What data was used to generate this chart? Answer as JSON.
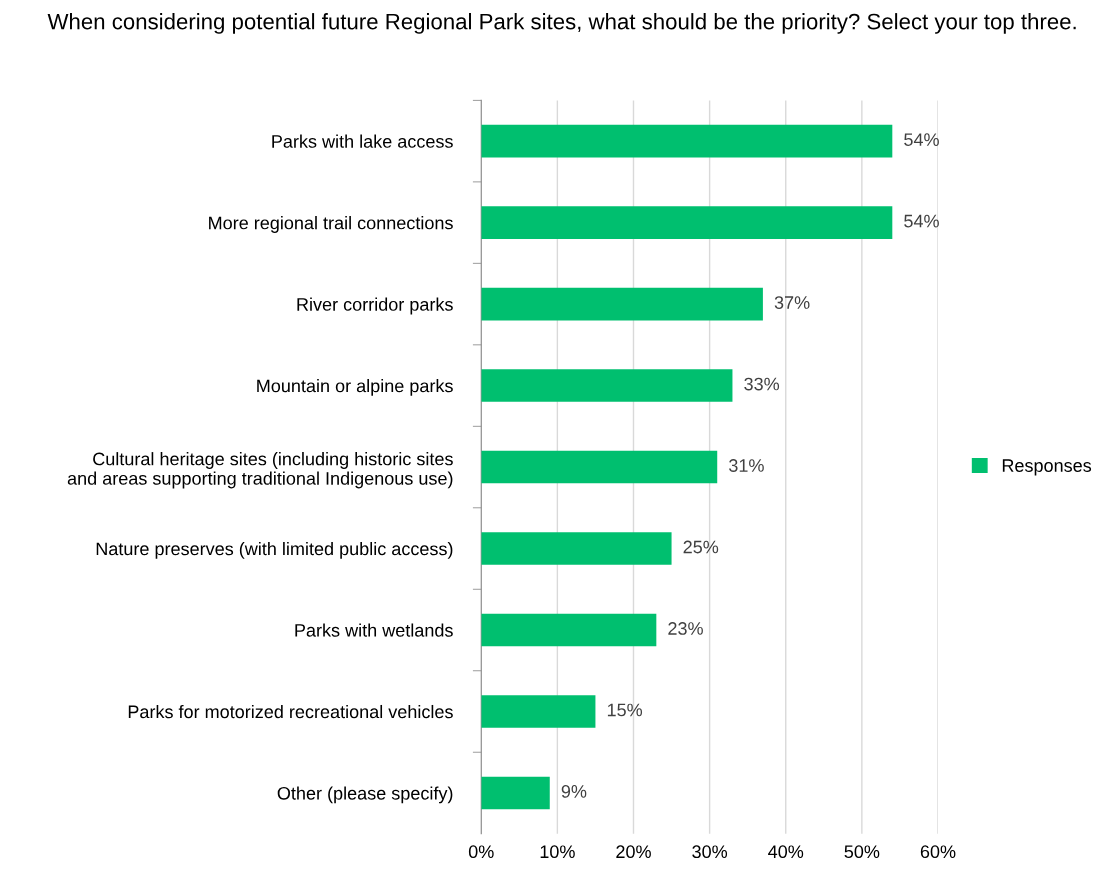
{
  "chart_data": {
    "type": "bar",
    "orientation": "horizontal",
    "title": "When considering potential future Regional Park sites, what should be the priority? Select your top three.",
    "categories": [
      "Parks with lake access",
      "More regional trail connections",
      "River corridor parks",
      "Mountain or alpine parks",
      "Cultural heritage sites (including historic sites\nand areas supporting traditional Indigenous use)",
      "Nature preserves (with limited public access)",
      "Parks with wetlands",
      "Parks for motorized recreational vehicles",
      "Other (please specify)"
    ],
    "series": [
      {
        "name": "Responses",
        "color": "#00bf6f",
        "values": [
          54,
          54,
          37,
          33,
          31,
          25,
          23,
          15,
          9
        ],
        "value_labels": [
          "54%",
          "54%",
          "37%",
          "33%",
          "31%",
          "25%",
          "23%",
          "15%",
          "9%"
        ]
      }
    ],
    "xlim": [
      0,
      60
    ],
    "xticks": [
      {
        "value": 0,
        "label": "0%"
      },
      {
        "value": 10,
        "label": "10%"
      },
      {
        "value": 20,
        "label": "20%"
      },
      {
        "value": 30,
        "label": "30%"
      },
      {
        "value": 40,
        "label": "40%"
      },
      {
        "value": 50,
        "label": "50%"
      },
      {
        "value": 60,
        "label": "60%"
      }
    ],
    "grid": "x",
    "legend": "right"
  }
}
